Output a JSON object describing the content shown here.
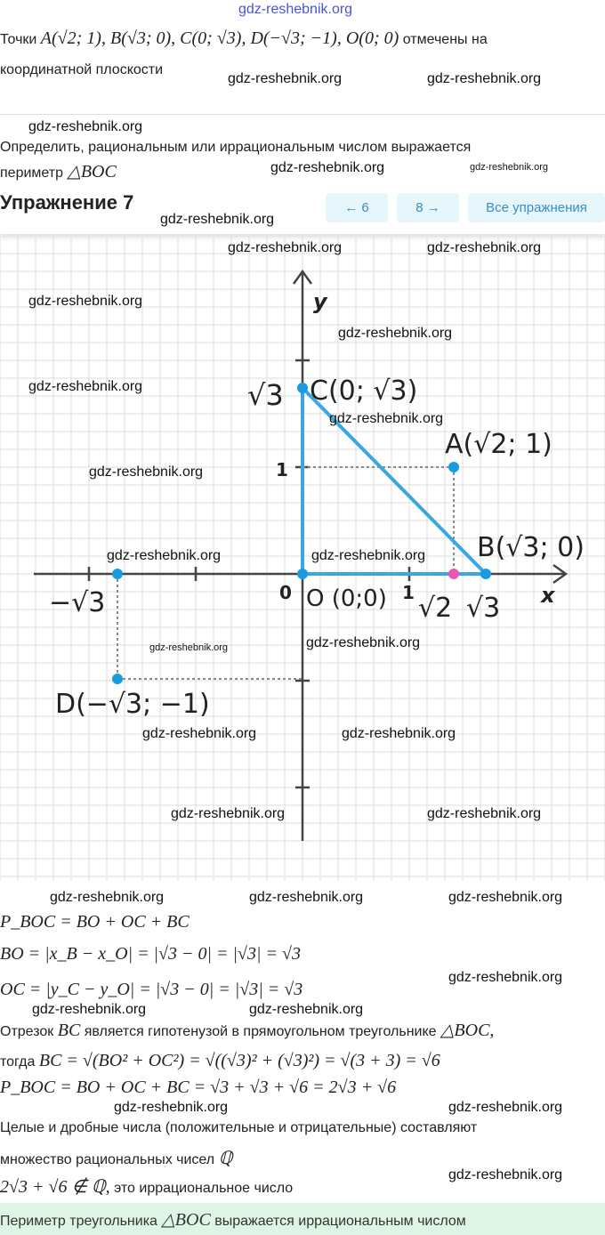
{
  "watermark": "gdz-reshebnik.org",
  "task": {
    "line1_prefix": "Точки",
    "line1_math": "A(√2; 1),  B(√3; 0),  C(0; √3),  D(−√3; −1),  O(0; 0)",
    "line1_suffix": "отмечены на",
    "line2": "координатной плоскости",
    "line3": "Определить, рациональным или иррациональным числом выражается",
    "line4_prefix": "периметр",
    "line4_math": "△BOC"
  },
  "header": {
    "title": "Упражнение 7",
    "prev_label": "← 6",
    "next_label": "8 →",
    "all_label": "Все упражнения"
  },
  "graph": {
    "x_axis_label": "x",
    "y_axis_label": "y",
    "labels": {
      "sqrt3_y": "√3",
      "one_y": "1",
      "zero": "0",
      "one_x": "1",
      "neg_sqrt3": "−√3",
      "sqrt2": "√2",
      "sqrt3_x": "√3",
      "C": "C(0; √3)",
      "A": "A(√2; 1)",
      "B": "B(√3; 0)",
      "O": "O (0;0)",
      "D": "D(−√3; −1)"
    },
    "colors": {
      "triangle": "#3aa7e0",
      "point": "#1a9be0",
      "pink": "#e857b0",
      "grid": "#dcdcdc"
    }
  },
  "solution": {
    "l1": "P_BOC = BO + OC + BC",
    "l2": "BO = |x_B − x_O| = |√3 − 0| = |√3| = √3",
    "l3": "OC = |y_C − y_O| = |√3 − 0| = |√3| = √3",
    "l4_a": "Отрезок",
    "l4_m": "BC",
    "l4_b": "является гипотенузой в прямоугольном треугольнике",
    "l4_m2": "△BOC,",
    "l5_a": "тогда",
    "l5_m": "BC = √(BO² + OC²) = √((√3)² + (√3)²) = √(3 + 3) = √6",
    "l6": "P_BOC = BO + OC + BC = √3 + √3 + √6 = 2√3 + √6",
    "l7": "Целые и дробные числа (положительные и отрицательные) составляют",
    "l8_a": "множество рациональных чисел",
    "l8_m": "ℚ",
    "l9_m": "2√3 + √6 ∉ ℚ,",
    "l9_b": "это иррациональное число",
    "answer_a": "Периметр треугольника",
    "answer_m": "△BOC",
    "answer_b": "выражается иррациональным числом"
  }
}
